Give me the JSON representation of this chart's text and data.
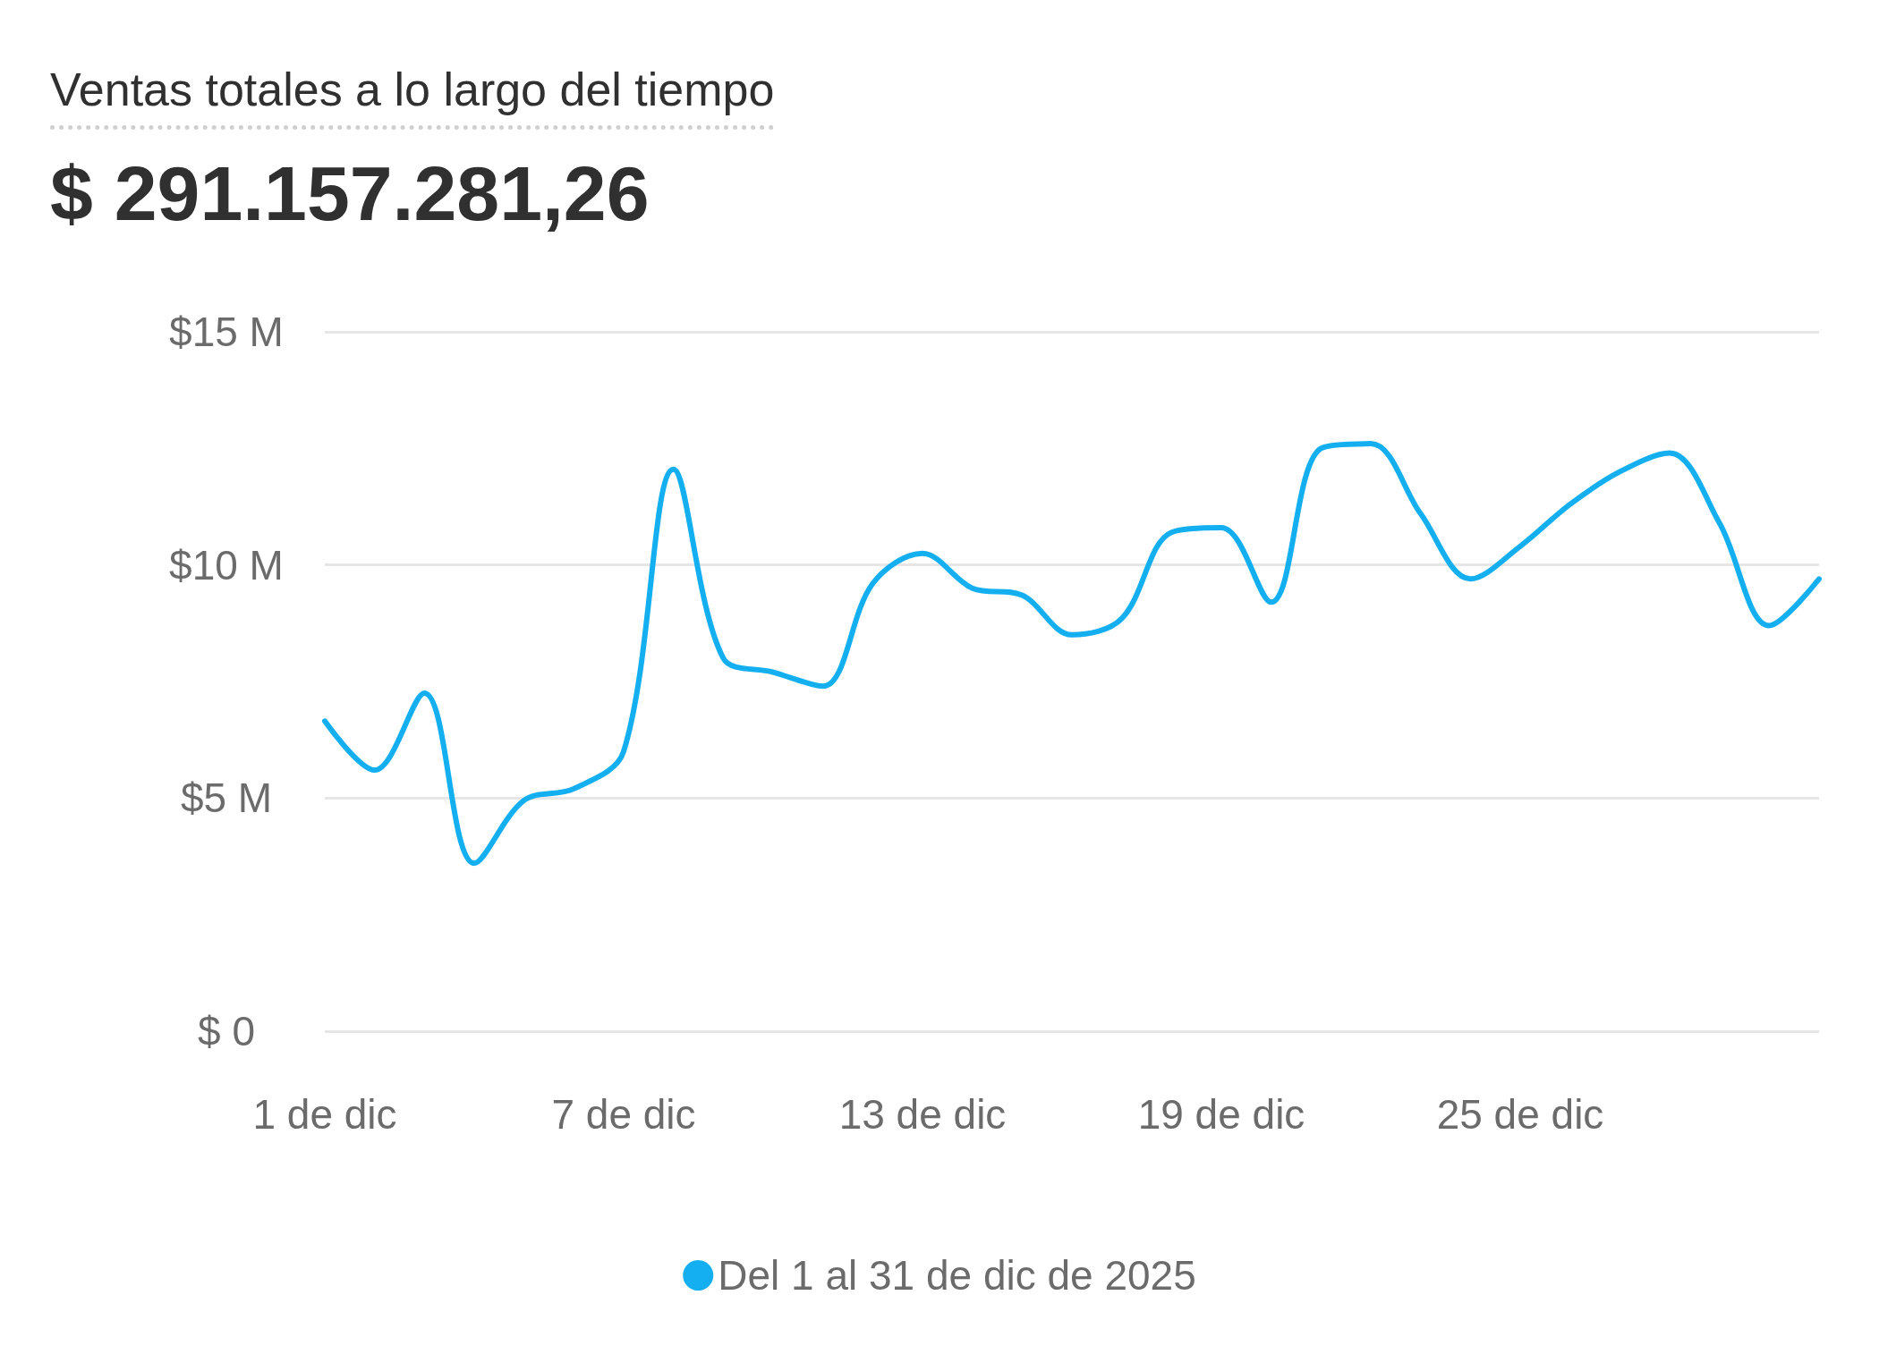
{
  "chart_data": {
    "type": "line",
    "title": "Ventas totales a lo largo del tiempo",
    "subtitle": "$ 291.157.281,26",
    "categories": [
      "1 de dic",
      null,
      null,
      null,
      null,
      null,
      "7 de dic",
      null,
      null,
      null,
      null,
      null,
      "13 de dic",
      null,
      null,
      null,
      null,
      null,
      "19 de dic",
      null,
      null,
      null,
      null,
      null,
      "25 de dic",
      null,
      null,
      null,
      null,
      null,
      null
    ],
    "series": [
      {
        "name": "Del 1 al 31 de dic de 2025",
        "color": "#13aff0",
        "values": [
          6.65,
          5.6,
          7.25,
          3.6,
          4.95,
          5.2,
          6.0,
          12.05,
          8.0,
          7.7,
          7.4,
          9.6,
          10.25,
          9.5,
          9.35,
          8.5,
          8.85,
          10.7,
          10.8,
          9.2,
          12.5,
          12.6,
          11.1,
          9.7,
          10.4,
          11.3,
          12.0,
          12.4,
          10.9,
          8.7,
          9.7
        ]
      }
    ],
    "ylim": [
      0,
      15
    ],
    "yticks": [
      {
        "value": 0,
        "label": "$ 0"
      },
      {
        "value": 5,
        "label": "$5 M"
      },
      {
        "value": 10,
        "label": "$10 M"
      },
      {
        "value": 15,
        "label": "$15 M"
      }
    ],
    "grid": "y",
    "legend": "bottom",
    "marker": "none",
    "line_style": "solid"
  }
}
